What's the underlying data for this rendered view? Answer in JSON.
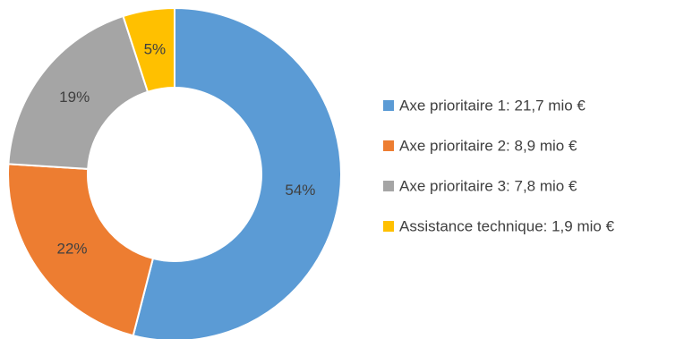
{
  "chart_data": {
    "type": "pie",
    "variant": "donut",
    "title": "",
    "categories": [
      "Axe prioritaire 1: 21,7 mio €",
      "Axe prioritaire 2: 8,9 mio €",
      "Axe prioritaire 3: 7,8 mio €",
      "Assistance technique: 1,9 mio €"
    ],
    "values": [
      54,
      22,
      19,
      5
    ],
    "data_labels": [
      "54%",
      "22%",
      "19%",
      "5%"
    ],
    "colors": [
      "#5b9bd5",
      "#ed7d31",
      "#a5a5a5",
      "#ffc000"
    ],
    "legend_position": "right",
    "start_angle_deg": 0,
    "direction": "clockwise"
  }
}
